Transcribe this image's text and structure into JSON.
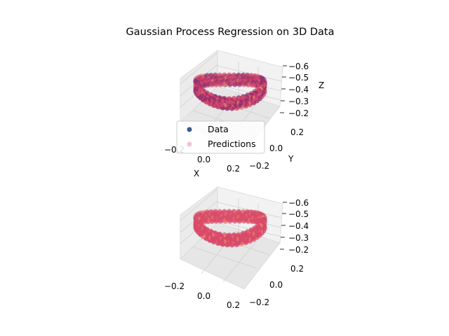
{
  "figure_title": "Gaussian Process Regression on 3D Data",
  "legend": {
    "items": [
      {
        "label": "Data",
        "color": "#3b5b8c"
      },
      {
        "label": "Predictions",
        "color": "#f2c4cf"
      }
    ]
  },
  "colors": {
    "data_points": "#8c2d6f",
    "prediction_points": "#d84a6b",
    "pane": "#f2f2f2",
    "grid": "#d0d0d0"
  },
  "chart_data": [
    {
      "type": "scatter",
      "projection": "3d",
      "title": "",
      "xlabel": "X",
      "ylabel": "Y",
      "zlabel": "Z",
      "xticks": [
        "−0.2",
        "0.0",
        "0.2"
      ],
      "yticks": [
        "−0.2",
        "0.0",
        "0.2"
      ],
      "zticks": [
        "−0.2",
        "−0.3",
        "−0.4",
        "−0.5",
        "−0.6"
      ],
      "xlim": [
        -0.3,
        0.3
      ],
      "ylim": [
        -0.3,
        0.3
      ],
      "zlim": [
        -0.2,
        -0.6
      ],
      "shape": "ring",
      "ring": {
        "center": [
          0.0,
          0.0,
          -0.4
        ],
        "radius": 0.25,
        "z_amplitude": 0.05
      },
      "series": [
        {
          "name": "Data",
          "role": "data"
        },
        {
          "name": "Predictions",
          "role": "predictions"
        }
      ],
      "legend_position": "lower-left"
    },
    {
      "type": "scatter",
      "projection": "3d",
      "title": "",
      "xlabel": "",
      "ylabel": "",
      "zlabel": "",
      "xticks": [
        "−0.2",
        "0.0",
        "0.2"
      ],
      "yticks": [
        "−0.2",
        "0.0",
        "0.2"
      ],
      "zticks": [
        "−0.2",
        "−0.3",
        "−0.4",
        "−0.5",
        "−0.6"
      ],
      "xlim": [
        -0.3,
        0.3
      ],
      "ylim": [
        -0.3,
        0.3
      ],
      "zlim": [
        -0.2,
        -0.6
      ],
      "shape": "ring",
      "ring": {
        "center": [
          0.0,
          0.0,
          -0.4
        ],
        "radius": 0.25,
        "z_amplitude": 0.05
      },
      "series": [
        {
          "name": "Predictions",
          "role": "predictions"
        }
      ]
    }
  ]
}
